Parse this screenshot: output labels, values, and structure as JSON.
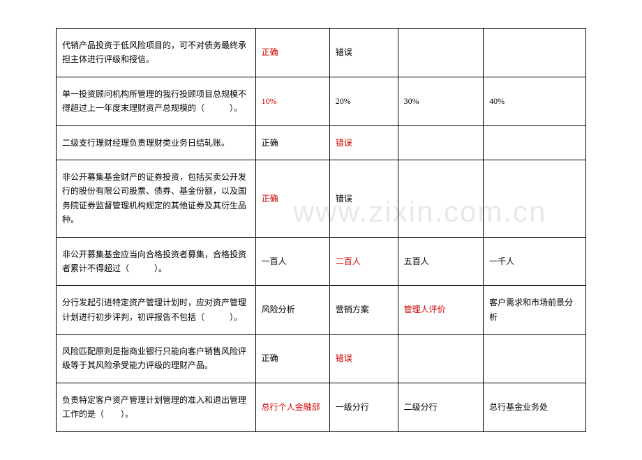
{
  "watermark": "www.zixin.com.cn",
  "text_color": "#000000",
  "highlight_color": "#d40000",
  "background_color": "#ffffff",
  "border_color": "#000000",
  "font_size": 12,
  "rows": [
    {
      "q": "代销产品投资于低风险项目的，可不对债务最终承担主体进行评级和授信。",
      "a1": {
        "text": "正确",
        "hl": true
      },
      "a2": {
        "text": "错误",
        "hl": false
      },
      "a3": {
        "text": "",
        "hl": false
      },
      "a4": {
        "text": "",
        "hl": false
      }
    },
    {
      "q": "单一投资顾问机构所管理的我行投顾项目总规模不得超过上一年度末理财资产总规模的（　　　）。",
      "a1": {
        "text": "10%",
        "hl": true
      },
      "a2": {
        "text": "20%",
        "hl": false
      },
      "a3": {
        "text": "30%",
        "hl": false
      },
      "a4": {
        "text": "40%",
        "hl": false
      }
    },
    {
      "q": "二级支行理财经理负责理财类业务日结轧账。",
      "a1": {
        "text": "正确",
        "hl": false
      },
      "a2": {
        "text": "错误",
        "hl": true
      },
      "a3": {
        "text": "",
        "hl": false
      },
      "a4": {
        "text": "",
        "hl": false
      }
    },
    {
      "q": "非公开募集基金财产的证券投资，包括买卖公开发行的股份有限公司股票、债券、基金份额，以及国务院证券监督管理机构规定的其他证券及其衍生品种。",
      "a1": {
        "text": "正确",
        "hl": true
      },
      "a2": {
        "text": "错误",
        "hl": false
      },
      "a3": {
        "text": "",
        "hl": false
      },
      "a4": {
        "text": "",
        "hl": false
      }
    },
    {
      "q": "非公开募集基金应当向合格投资者募集，合格投资者累计不得超过（　　　）。",
      "a1": {
        "text": "一百人",
        "hl": false
      },
      "a2": {
        "text": "二百人",
        "hl": true
      },
      "a3": {
        "text": "五百人",
        "hl": false
      },
      "a4": {
        "text": "一千人",
        "hl": false
      }
    },
    {
      "q": "分行发起引进特定资产管理计划时，应对资产管理计划进行初步评判，初评报告不包括（　　　）。",
      "a1": {
        "text": "风险分析",
        "hl": false
      },
      "a2": {
        "text": "营销方案",
        "hl": false
      },
      "a3": {
        "text": "管理人评价",
        "hl": true
      },
      "a4": {
        "text": "客户需求和市场前景分析",
        "hl": false
      }
    },
    {
      "q": "风险匹配原则是指商业银行只能向客户销售风险评级等于其风险承受能力评级的理财产品。",
      "a1": {
        "text": "正确",
        "hl": false
      },
      "a2": {
        "text": "错误",
        "hl": true
      },
      "a3": {
        "text": "",
        "hl": false
      },
      "a4": {
        "text": "",
        "hl": false
      }
    },
    {
      "q": "负责特定客户资产管理计划管理的准入和退出管理工作的是（　　）。",
      "a1": {
        "text": "总行个人金融部",
        "hl": true
      },
      "a2": {
        "text": "一级分行",
        "hl": false
      },
      "a3": {
        "text": "二级分行",
        "hl": false
      },
      "a4": {
        "text": "总行基金业务处",
        "hl": false
      }
    }
  ]
}
